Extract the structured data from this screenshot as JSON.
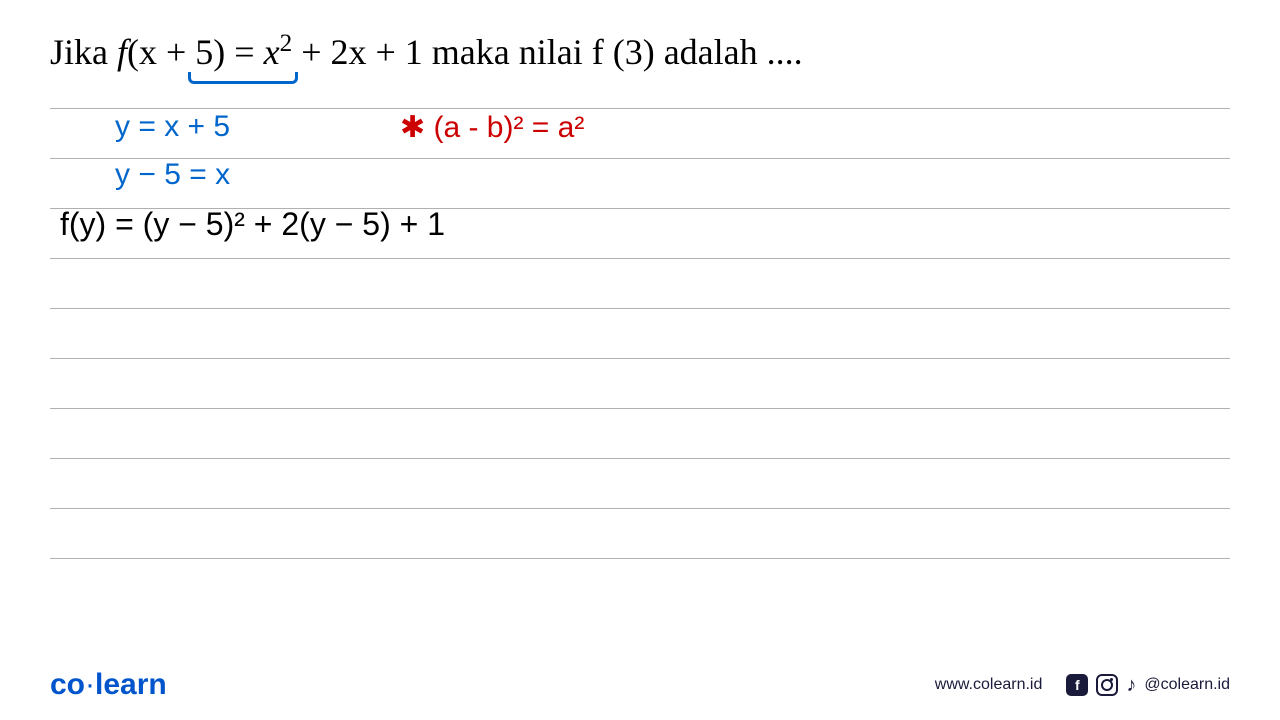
{
  "problem": {
    "prefix": "Jika ",
    "fn_part1": "f",
    "arg": "(x + 5)",
    "equals": " = ",
    "rhs_x2": "x",
    "rhs_plus2x": " + 2x + 1",
    "middle": "   maka nilai f (3)   adalah ...."
  },
  "handwriting": {
    "line1_blue": "y = x + 5",
    "line1_red": "✱ (a - b)² = a²",
    "line2_blue": "y − 5 = x",
    "line3_black": "f(y) = (y − 5)² + 2(y − 5) + 1"
  },
  "ruled_lines": {
    "count": 10,
    "top_offset": 0,
    "spacing": 50,
    "color": "#b0b0b0"
  },
  "styling": {
    "page_bg": "#ffffff",
    "blue": "#0066cc",
    "red": "#cc0000",
    "black": "#000000",
    "line_color": "#b0b0b0",
    "brand_blue": "#0055cc",
    "footer_text": "#1a1a3a",
    "problem_fontsize": 36,
    "hw_fontsize": 30
  },
  "footer": {
    "brand_co": "co",
    "brand_dot": "·",
    "brand_learn": "learn",
    "website": "www.colearn.id",
    "handle": "@colearn.id"
  }
}
